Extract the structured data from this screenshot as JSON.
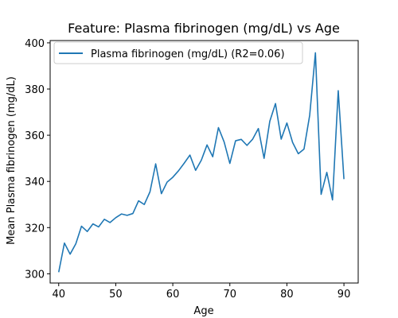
{
  "chart_data": {
    "type": "line",
    "title": "Feature: Plasma fibrinogen (mg/dL) vs Age",
    "xlabel": "Age",
    "ylabel": "Mean Plasma fibrinogen (mg/dL)",
    "xlim": [
      38.5,
      92.5
    ],
    "ylim": [
      296,
      401
    ],
    "xticks": [
      40,
      50,
      60,
      70,
      80,
      90
    ],
    "yticks": [
      300,
      320,
      340,
      360,
      380,
      400
    ],
    "grid": false,
    "legend_position": "top-left",
    "series": [
      {
        "name": "Plasma fibrinogen (mg/dL) (R2=0.06)",
        "color": "#1f77b4",
        "x": [
          40,
          41,
          42,
          43,
          44,
          45,
          46,
          47,
          48,
          49,
          50,
          51,
          52,
          53,
          54,
          55,
          56,
          57,
          58,
          59,
          60,
          61,
          62,
          63,
          64,
          65,
          66,
          67,
          68,
          69,
          70,
          71,
          72,
          73,
          74,
          75,
          76,
          77,
          78,
          79,
          80,
          81,
          82,
          83,
          84,
          85,
          86,
          87,
          88,
          89,
          90
        ],
        "y": [
          300.7,
          313.3,
          308.5,
          313.0,
          320.6,
          318.3,
          321.6,
          320.3,
          323.6,
          322.2,
          324.3,
          325.9,
          325.3,
          326.1,
          331.6,
          330.0,
          335.5,
          347.6,
          334.7,
          339.7,
          341.8,
          344.6,
          347.9,
          351.4,
          344.8,
          349.2,
          355.8,
          350.7,
          363.3,
          357.1,
          347.8,
          357.6,
          358.2,
          355.6,
          358.3,
          362.9,
          350.0,
          366.0,
          373.7,
          358.3,
          365.3,
          356.9,
          352.0,
          354.0,
          368.7,
          395.7,
          334.4,
          343.9,
          332.0,
          379.3,
          341.0
        ]
      }
    ]
  }
}
